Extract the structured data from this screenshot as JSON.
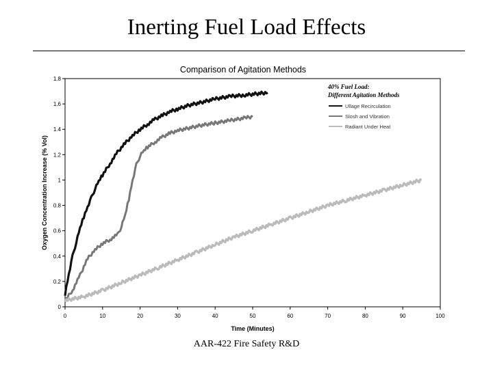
{
  "slide": {
    "title": "Inerting Fuel Load Effects",
    "footer": "AAR-422 Fire Safety R&D"
  },
  "colors": {
    "ullage": "#111111",
    "slosh": "#777777",
    "radiant": "#bbbbbb",
    "grid": "#000000"
  },
  "chart_data": {
    "type": "line",
    "title": "Comparison of Agitation Methods",
    "xlabel": "Time (Minutes)",
    "ylabel": "Oxygen Concentration Increase (% Vol)",
    "xlim": [
      0,
      100
    ],
    "ylim": [
      0,
      1.8
    ],
    "xticks": [
      0,
      10,
      20,
      30,
      40,
      50,
      60,
      70,
      80,
      90,
      100
    ],
    "yticks": [
      0,
      0.2,
      0.4,
      0.6,
      0.8,
      1,
      1.2,
      1.4,
      1.6,
      1.8
    ],
    "grid": false,
    "legend_title": [
      "40% Fuel Load:",
      "Different Agitation Methods"
    ],
    "legend_position": "top-right",
    "series": [
      {
        "name": "Ullage Recirculation",
        "x": [
          0,
          1,
          2,
          3,
          4,
          5,
          6,
          7,
          8,
          9,
          10,
          12,
          14,
          16,
          18,
          20,
          22,
          24,
          26,
          28,
          30,
          33,
          36,
          40,
          44,
          48,
          51,
          54
        ],
        "y": [
          0.1,
          0.26,
          0.4,
          0.51,
          0.62,
          0.71,
          0.79,
          0.86,
          0.93,
          0.99,
          1.04,
          1.13,
          1.22,
          1.29,
          1.35,
          1.4,
          1.44,
          1.48,
          1.51,
          1.54,
          1.56,
          1.59,
          1.61,
          1.64,
          1.66,
          1.67,
          1.68,
          1.69
        ]
      },
      {
        "name": "Slosh and Vibration",
        "x": [
          0,
          2,
          4,
          6,
          8,
          10,
          12,
          14,
          15,
          16,
          17,
          18,
          19,
          20,
          21,
          22,
          24,
          26,
          28,
          30,
          33,
          36,
          40,
          44,
          48,
          50
        ],
        "y": [
          0.05,
          0.13,
          0.25,
          0.38,
          0.45,
          0.5,
          0.53,
          0.57,
          0.63,
          0.72,
          0.85,
          1.0,
          1.12,
          1.19,
          1.23,
          1.26,
          1.3,
          1.34,
          1.37,
          1.39,
          1.41,
          1.43,
          1.45,
          1.47,
          1.49,
          1.5
        ]
      },
      {
        "name": "Radiant Under Heat",
        "x": [
          0,
          5,
          10,
          15,
          20,
          25,
          30,
          35,
          40,
          45,
          50,
          55,
          60,
          65,
          70,
          75,
          80,
          85,
          90,
          95
        ],
        "y": [
          0.05,
          0.08,
          0.13,
          0.19,
          0.25,
          0.31,
          0.37,
          0.43,
          0.49,
          0.55,
          0.6,
          0.65,
          0.7,
          0.75,
          0.8,
          0.84,
          0.88,
          0.92,
          0.96,
          1.0
        ]
      }
    ]
  }
}
